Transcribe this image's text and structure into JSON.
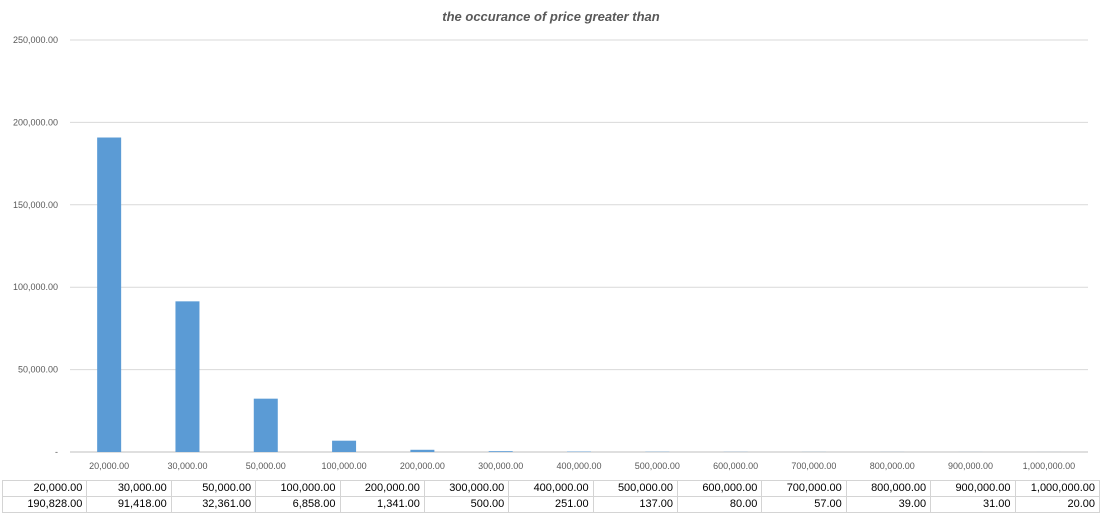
{
  "chart_data": {
    "type": "bar",
    "title": "the occurance of price greater than",
    "categories": [
      "20,000.00",
      "30,000.00",
      "50,000.00",
      "100,000.00",
      "200,000.00",
      "300,000.00",
      "400,000.00",
      "500,000.00",
      "600,000.00",
      "700,000.00",
      "800,000.00",
      "900,000.00",
      "1,000,000.00"
    ],
    "values": [
      190828,
      91418,
      32361,
      6858,
      1341,
      500,
      251,
      137,
      80,
      57,
      39,
      31,
      20
    ],
    "ylim": [
      0,
      250000
    ],
    "yticks": [
      "-",
      "50,000.00",
      "100,000.00",
      "150,000.00",
      "200,000.00",
      "250,000.00"
    ],
    "grid": true,
    "bar_color": "#5b9bd5"
  },
  "table": {
    "rows": [
      [
        "20,000.00",
        "30,000.00",
        "50,000.00",
        "100,000.00",
        "200,000.00",
        "300,000.00",
        "400,000.00",
        "500,000.00",
        "600,000.00",
        "700,000.00",
        "800,000.00",
        "900,000.00",
        "1,000,000.00"
      ],
      [
        "190,828.00",
        "91,418.00",
        "32,361.00",
        "6,858.00",
        "1,341.00",
        "500.00",
        "251.00",
        "137.00",
        "80.00",
        "57.00",
        "39.00",
        "31.00",
        "20.00"
      ]
    ]
  }
}
